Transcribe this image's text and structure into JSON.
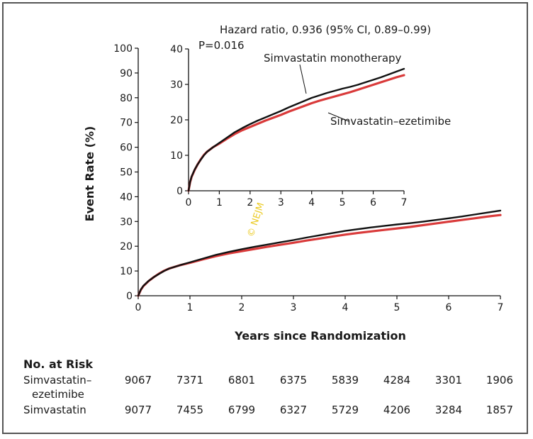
{
  "chart_data": {
    "type": "line",
    "ylabel": "Event Rate (%)",
    "xlabel": "Years since Randomization",
    "xlim": [
      0,
      7
    ],
    "ylim": [
      0,
      100
    ],
    "x_ticks": [
      "0",
      "1",
      "2",
      "3",
      "4",
      "5",
      "6",
      "7"
    ],
    "y_ticks": [
      "0",
      "10",
      "20",
      "30",
      "40",
      "50",
      "60",
      "70",
      "80",
      "90",
      "100"
    ],
    "series": [
      {
        "name": "Simvastatin monotherapy",
        "color": "#111111",
        "points": [
          [
            0,
            0
          ],
          [
            0.05,
            2.5
          ],
          [
            0.1,
            4
          ],
          [
            0.2,
            6
          ],
          [
            0.3,
            7.5
          ],
          [
            0.4,
            8.8
          ],
          [
            0.5,
            10
          ],
          [
            0.6,
            11
          ],
          [
            0.8,
            12.3
          ],
          [
            1,
            13.5
          ],
          [
            1.25,
            15
          ],
          [
            1.5,
            16.5
          ],
          [
            1.75,
            17.7
          ],
          [
            2,
            18.8
          ],
          [
            2.25,
            19.8
          ],
          [
            2.5,
            20.7
          ],
          [
            2.75,
            21.6
          ],
          [
            3,
            22.5
          ],
          [
            3.25,
            23.5
          ],
          [
            3.5,
            24.4
          ],
          [
            3.75,
            25.3
          ],
          [
            4,
            26.2
          ],
          [
            4.25,
            26.9
          ],
          [
            4.5,
            27.6
          ],
          [
            4.75,
            28.2
          ],
          [
            5,
            28.8
          ],
          [
            5.25,
            29.3
          ],
          [
            5.5,
            29.9
          ],
          [
            5.75,
            30.6
          ],
          [
            6,
            31.3
          ],
          [
            6.25,
            32
          ],
          [
            6.5,
            32.8
          ],
          [
            6.75,
            33.6
          ],
          [
            7,
            34.4
          ]
        ]
      },
      {
        "name": "Simvastatin–ezetimibe",
        "color": "#d93a3a",
        "points": [
          [
            0,
            0
          ],
          [
            0.05,
            2.4
          ],
          [
            0.1,
            3.9
          ],
          [
            0.2,
            5.9
          ],
          [
            0.3,
            7.5
          ],
          [
            0.4,
            8.9
          ],
          [
            0.5,
            10.1
          ],
          [
            0.6,
            11
          ],
          [
            0.8,
            12.3
          ],
          [
            1,
            13.3
          ],
          [
            1.25,
            14.7
          ],
          [
            1.5,
            16
          ],
          [
            1.75,
            17.1
          ],
          [
            2,
            18
          ],
          [
            2.25,
            18.9
          ],
          [
            2.5,
            19.8
          ],
          [
            2.75,
            20.6
          ],
          [
            3,
            21.4
          ],
          [
            3.25,
            22.3
          ],
          [
            3.5,
            23.1
          ],
          [
            3.75,
            23.9
          ],
          [
            4,
            24.7
          ],
          [
            4.25,
            25.4
          ],
          [
            4.5,
            26
          ],
          [
            4.75,
            26.6
          ],
          [
            5,
            27.2
          ],
          [
            5.25,
            27.8
          ],
          [
            5.5,
            28.5
          ],
          [
            5.75,
            29.2
          ],
          [
            6,
            29.9
          ],
          [
            6.25,
            30.6
          ],
          [
            6.5,
            31.3
          ],
          [
            6.75,
            32
          ],
          [
            7,
            32.6
          ]
        ]
      }
    ],
    "inset": {
      "xlim": [
        0,
        7
      ],
      "ylim": [
        0,
        40
      ],
      "x_ticks": [
        "0",
        "1",
        "2",
        "3",
        "4",
        "5",
        "6",
        "7"
      ],
      "y_ticks": [
        "0",
        "10",
        "20",
        "30",
        "40"
      ],
      "annotation_line1": "Hazard ratio, 0.936 (95% CI, 0.89–0.99)",
      "annotation_line2": "P=0.016",
      "label_simvastatin": "Simvastatin monotherapy",
      "label_ezetimibe": "Simvastatin–ezetimibe"
    },
    "watermark": "© NEJM"
  },
  "risk_table": {
    "title": "No. at Risk",
    "rows": [
      {
        "label_line1": "Simvastatin–",
        "label_line2": "ezetimibe",
        "values": [
          "9067",
          "7371",
          "6801",
          "6375",
          "5839",
          "4284",
          "3301",
          "1906"
        ]
      },
      {
        "label_line1": "Simvastatin",
        "label_line2": "",
        "values": [
          "9077",
          "7455",
          "6799",
          "6327",
          "5729",
          "4206",
          "3284",
          "1857"
        ]
      }
    ]
  }
}
